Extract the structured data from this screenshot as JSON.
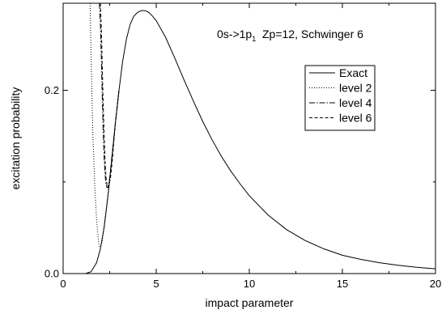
{
  "chart_data": {
    "type": "line",
    "xlabel": "impact parameter",
    "ylabel": "excitation probability",
    "annotation": {
      "prefix": "0s->1p",
      "subscript": "1",
      "suffix": "  Zp=12, Schwinger 6"
    },
    "xlim": [
      0,
      20
    ],
    "ylim": [
      0,
      0.295
    ],
    "x_ticks": [
      0,
      5,
      10,
      15,
      20
    ],
    "x_tick_labels": [
      "0",
      "5",
      "10",
      "15",
      "20"
    ],
    "y_ticks": [
      0.0,
      0.2
    ],
    "y_tick_labels": [
      "0.0",
      "0.2"
    ],
    "grid": false,
    "legend_position": "right, upper-middle",
    "series": [
      {
        "name": "Exact",
        "style": "solid",
        "x": [
          1.2,
          1.5,
          1.8,
          2.0,
          2.2,
          2.4,
          2.6,
          2.8,
          3.0,
          3.2,
          3.4,
          3.6,
          3.8,
          4.0,
          4.2,
          4.4,
          4.6,
          4.8,
          5.0,
          5.5,
          6.0,
          6.5,
          7.0,
          7.5,
          8.0,
          8.5,
          9.0,
          9.5,
          10.0,
          11.0,
          12.0,
          13.0,
          14.0,
          15.0,
          16.0,
          17.0,
          18.0,
          19.0,
          20.0
        ],
        "y": [
          0.0,
          0.002,
          0.012,
          0.027,
          0.05,
          0.083,
          0.122,
          0.163,
          0.2,
          0.232,
          0.256,
          0.272,
          0.281,
          0.285,
          0.287,
          0.287,
          0.285,
          0.281,
          0.276,
          0.258,
          0.235,
          0.211,
          0.188,
          0.166,
          0.146,
          0.128,
          0.112,
          0.098,
          0.085,
          0.064,
          0.048,
          0.036,
          0.027,
          0.02,
          0.0155,
          0.0118,
          0.009,
          0.0068,
          0.0052
        ]
      },
      {
        "name": "level 2",
        "style": "dotted",
        "x": [
          1.45,
          1.5,
          1.55,
          1.6,
          1.7,
          1.8,
          1.9,
          1.95,
          2.0,
          2.1,
          2.2,
          2.4,
          2.6,
          2.8,
          3.0
        ],
        "y": [
          0.295,
          0.24,
          0.19,
          0.15,
          0.095,
          0.058,
          0.035,
          0.029,
          0.028,
          0.035,
          0.052,
          0.085,
          0.122,
          0.163,
          0.2
        ]
      },
      {
        "name": "level 4",
        "style": "dashdot",
        "x": [
          1.95,
          2.0,
          2.05,
          2.1,
          2.15,
          2.2,
          2.25,
          2.3,
          2.35,
          2.4,
          2.5,
          2.6,
          2.8,
          3.0
        ],
        "y": [
          0.295,
          0.272,
          0.235,
          0.195,
          0.158,
          0.128,
          0.108,
          0.098,
          0.094,
          0.094,
          0.104,
          0.124,
          0.163,
          0.2
        ]
      },
      {
        "name": "level 6",
        "style": "dashed",
        "x": [
          2.0,
          2.05,
          2.1,
          2.15,
          2.2,
          2.25,
          2.3,
          2.35,
          2.4,
          2.45,
          2.55,
          2.65,
          2.8,
          3.0
        ],
        "y": [
          0.295,
          0.268,
          0.228,
          0.188,
          0.152,
          0.124,
          0.106,
          0.097,
          0.094,
          0.095,
          0.106,
          0.125,
          0.163,
          0.2
        ]
      }
    ]
  }
}
